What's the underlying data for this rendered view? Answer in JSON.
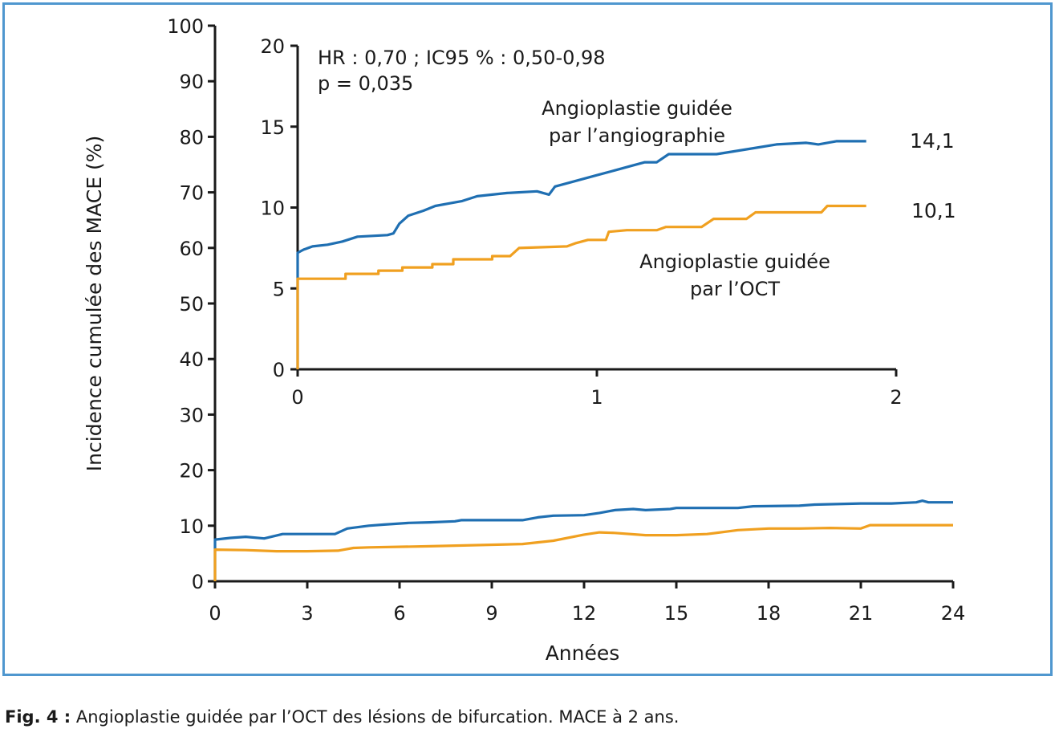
{
  "caption": {
    "label": "Fig. 4 :",
    "text": "Angioplastie guidée par l’OCT des lésions de bifurcation. MACE à 2 ans."
  },
  "colors": {
    "frame": "#4f97cf",
    "angiography": "#1f6fb2",
    "oct": "#f0a020",
    "axis": "#1a1a1a"
  },
  "chart_data": [
    {
      "id": "main",
      "type": "line",
      "xlabel": "Années",
      "ylabel": "Incidence cumulée des MACE (%)",
      "xlim": [
        0,
        24
      ],
      "ylim": [
        0,
        100
      ],
      "x_ticks": [
        "0",
        "3",
        "6",
        "9",
        "12",
        "15",
        "18",
        "21",
        "24"
      ],
      "y_ticks": [
        "0",
        "10",
        "20",
        "30",
        "40",
        "50",
        "60",
        "70",
        "80",
        "90",
        "100"
      ],
      "series": [
        {
          "key": "angio",
          "points": [
            [
              0,
              0
            ],
            [
              0,
              7.5
            ],
            [
              0.5,
              7.8
            ],
            [
              1,
              8
            ],
            [
              1.6,
              7.7
            ],
            [
              2.2,
              8.5
            ],
            [
              3,
              8.5
            ],
            [
              3.9,
              8.5
            ],
            [
              4.3,
              9.5
            ],
            [
              5,
              10
            ],
            [
              5.5,
              10.2
            ],
            [
              6.3,
              10.5
            ],
            [
              7,
              10.6
            ],
            [
              7.8,
              10.8
            ],
            [
              8,
              11
            ],
            [
              10,
              11
            ],
            [
              10.5,
              11.5
            ],
            [
              11,
              11.8
            ],
            [
              12,
              11.9
            ],
            [
              12.5,
              12.3
            ],
            [
              13,
              12.8
            ],
            [
              13.6,
              13
            ],
            [
              14,
              12.8
            ],
            [
              14.8,
              13
            ],
            [
              15,
              13.2
            ],
            [
              17,
              13.2
            ],
            [
              17.5,
              13.5
            ],
            [
              19,
              13.6
            ],
            [
              19.5,
              13.8
            ],
            [
              21,
              14
            ],
            [
              22,
              14
            ],
            [
              22.8,
              14.2
            ],
            [
              23,
              14.5
            ],
            [
              23.2,
              14.2
            ],
            [
              24,
              14.2
            ]
          ]
        },
        {
          "key": "oct",
          "points": [
            [
              0,
              0
            ],
            [
              0,
              5.7
            ],
            [
              1,
              5.6
            ],
            [
              2,
              5.4
            ],
            [
              3,
              5.4
            ],
            [
              4,
              5.5
            ],
            [
              4.5,
              6
            ],
            [
              5,
              6.1
            ],
            [
              7,
              6.3
            ],
            [
              10,
              6.7
            ],
            [
              11,
              7.3
            ],
            [
              12,
              8.4
            ],
            [
              12.5,
              8.8
            ],
            [
              13,
              8.7
            ],
            [
              14,
              8.3
            ],
            [
              15,
              8.3
            ],
            [
              16,
              8.5
            ],
            [
              17,
              9.2
            ],
            [
              18,
              9.5
            ],
            [
              19,
              9.5
            ],
            [
              20,
              9.6
            ],
            [
              21,
              9.5
            ],
            [
              21.3,
              10.1
            ],
            [
              24,
              10.1
            ]
          ]
        }
      ]
    },
    {
      "id": "inset",
      "type": "line",
      "xlim": [
        0,
        2
      ],
      "ylim": [
        0,
        20
      ],
      "x_ticks": [
        "0",
        "1",
        "2"
      ],
      "y_ticks": [
        "0",
        "5",
        "10",
        "15",
        "20"
      ],
      "annotations": [
        "HR : 0,70 ; IC95 % : 0,50-0,98",
        "p = 0,035"
      ],
      "series": [
        {
          "name": "Angioplastie guidée par l’angiographie",
          "name_lines": [
            "Angioplastie guidée",
            "par l’angiographie"
          ],
          "end_label": "14,1",
          "key": "angio",
          "points": [
            [
              0,
              0
            ],
            [
              0,
              7.2
            ],
            [
              0.02,
              7.4
            ],
            [
              0.05,
              7.6
            ],
            [
              0.1,
              7.7
            ],
            [
              0.15,
              7.9
            ],
            [
              0.2,
              8.2
            ],
            [
              0.3,
              8.3
            ],
            [
              0.32,
              8.4
            ],
            [
              0.34,
              9
            ],
            [
              0.37,
              9.5
            ],
            [
              0.42,
              9.8
            ],
            [
              0.46,
              10.1
            ],
            [
              0.55,
              10.4
            ],
            [
              0.6,
              10.7
            ],
            [
              0.65,
              10.8
            ],
            [
              0.7,
              10.9
            ],
            [
              0.8,
              11
            ],
            [
              0.84,
              10.8
            ],
            [
              0.86,
              11.3
            ],
            [
              0.9,
              11.5
            ],
            [
              1,
              12
            ],
            [
              1.06,
              12.3
            ],
            [
              1.12,
              12.6
            ],
            [
              1.16,
              12.8
            ],
            [
              1.2,
              12.8
            ],
            [
              1.24,
              13.3
            ],
            [
              1.4,
              13.3
            ],
            [
              1.5,
              13.6
            ],
            [
              1.6,
              13.9
            ],
            [
              1.7,
              14
            ],
            [
              1.74,
              13.9
            ],
            [
              1.8,
              14.1
            ],
            [
              1.9,
              14.1
            ]
          ]
        },
        {
          "name": "Angioplastie guidée par l’OCT",
          "name_lines": [
            "Angioplastie guidée",
            "par l’OCT"
          ],
          "end_label": "10,1",
          "key": "oct",
          "points": [
            [
              0,
              0
            ],
            [
              0,
              5.6
            ],
            [
              0.16,
              5.6
            ],
            [
              0.16,
              5.9
            ],
            [
              0.27,
              5.9
            ],
            [
              0.27,
              6.1
            ],
            [
              0.35,
              6.1
            ],
            [
              0.35,
              6.3
            ],
            [
              0.45,
              6.3
            ],
            [
              0.45,
              6.5
            ],
            [
              0.52,
              6.5
            ],
            [
              0.52,
              6.8
            ],
            [
              0.65,
              6.8
            ],
            [
              0.65,
              7
            ],
            [
              0.71,
              7
            ],
            [
              0.74,
              7.5
            ],
            [
              0.9,
              7.6
            ],
            [
              0.93,
              7.8
            ],
            [
              0.97,
              8
            ],
            [
              1.03,
              8
            ],
            [
              1.04,
              8.5
            ],
            [
              1.1,
              8.6
            ],
            [
              1.2,
              8.6
            ],
            [
              1.23,
              8.8
            ],
            [
              1.35,
              8.8
            ],
            [
              1.39,
              9.3
            ],
            [
              1.5,
              9.3
            ],
            [
              1.53,
              9.7
            ],
            [
              1.75,
              9.7
            ],
            [
              1.77,
              10.1
            ],
            [
              1.9,
              10.1
            ]
          ]
        }
      ]
    }
  ]
}
